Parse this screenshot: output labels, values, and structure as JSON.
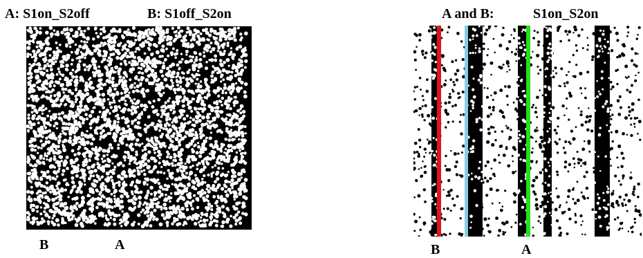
{
  "left_figure": {
    "title_a": "A: S1on_S2off",
    "title_b": "B: S1off_S2on",
    "marker_b": "B",
    "marker_a": "A"
  },
  "right_figure": {
    "title_prefix": "A and B:",
    "title_state": "S1on_S2on",
    "marker_b": "B",
    "marker_a": "A",
    "line_colors": {
      "B": "#e0141b",
      "mid": "#87cde6",
      "A": "#22e01c"
    }
  },
  "colors": {
    "dot": "#ffffff",
    "background": "#000000"
  }
}
